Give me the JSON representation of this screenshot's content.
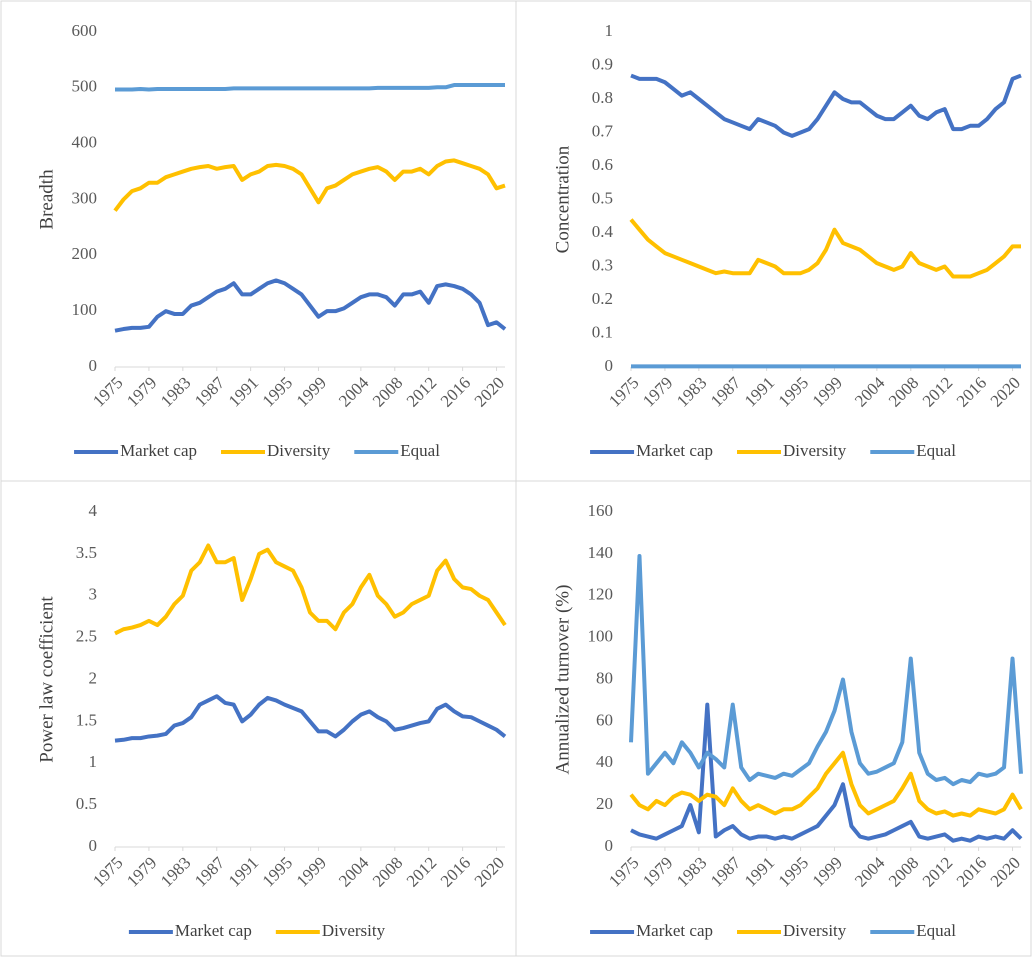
{
  "chart_data": [
    {
      "type": "line",
      "y_label": "Breadth",
      "legend": "bottom",
      "grid": false,
      "x": [
        1975,
        1976,
        1977,
        1978,
        1979,
        1980,
        1981,
        1982,
        1983,
        1984,
        1985,
        1986,
        1987,
        1988,
        1989,
        1990,
        1991,
        1992,
        1993,
        1994,
        1995,
        1996,
        1997,
        1998,
        1999,
        2000,
        2001,
        2002,
        2003,
        2004,
        2005,
        2006,
        2007,
        2008,
        2009,
        2010,
        2011,
        2012,
        2013,
        2014,
        2015,
        2016,
        2017,
        2018,
        2019,
        2020,
        2021
      ],
      "xlim": [
        1975,
        2021
      ],
      "xticks": [
        1975,
        1979,
        1983,
        1987,
        1991,
        1995,
        1999,
        2004,
        2008,
        2012,
        2016,
        2020
      ],
      "ylim": [
        0,
        600
      ],
      "yticks": [
        0,
        100,
        200,
        300,
        400,
        500,
        600
      ],
      "series": [
        {
          "name": "Market cap",
          "color": "#4472c4",
          "values": [
            65,
            68,
            70,
            70,
            72,
            90,
            100,
            95,
            95,
            110,
            115,
            125,
            135,
            140,
            150,
            130,
            130,
            140,
            150,
            155,
            150,
            140,
            130,
            110,
            90,
            100,
            100,
            105,
            115,
            125,
            130,
            130,
            125,
            110,
            130,
            130,
            135,
            115,
            145,
            148,
            145,
            140,
            130,
            115,
            75,
            80,
            68
          ]
        },
        {
          "name": "Diversity",
          "color": "#ffc000",
          "values": [
            280,
            300,
            315,
            320,
            330,
            330,
            340,
            345,
            350,
            355,
            358,
            360,
            355,
            358,
            360,
            335,
            345,
            350,
            360,
            362,
            360,
            355,
            345,
            320,
            295,
            320,
            325,
            335,
            345,
            350,
            355,
            358,
            350,
            335,
            350,
            350,
            355,
            345,
            360,
            368,
            370,
            365,
            360,
            355,
            345,
            320,
            325
          ]
        },
        {
          "name": "Equal",
          "color": "#5b9bd5",
          "values": [
            497,
            497,
            497,
            498,
            497,
            498,
            498,
            498,
            498,
            498,
            498,
            498,
            498,
            498,
            499,
            499,
            499,
            499,
            499,
            499,
            499,
            499,
            499,
            499,
            499,
            499,
            499,
            499,
            499,
            499,
            499,
            500,
            500,
            500,
            500,
            500,
            500,
            500,
            501,
            501,
            505,
            505,
            505,
            505,
            505,
            505,
            505
          ]
        }
      ]
    },
    {
      "type": "line",
      "y_label": "Concentration",
      "legend": "bottom",
      "grid": false,
      "x": [
        1975,
        1976,
        1977,
        1978,
        1979,
        1980,
        1981,
        1982,
        1983,
        1984,
        1985,
        1986,
        1987,
        1988,
        1989,
        1990,
        1991,
        1992,
        1993,
        1994,
        1995,
        1996,
        1997,
        1998,
        1999,
        2000,
        2001,
        2002,
        2003,
        2004,
        2005,
        2006,
        2007,
        2008,
        2009,
        2010,
        2011,
        2012,
        2013,
        2014,
        2015,
        2016,
        2017,
        2018,
        2019,
        2020,
        2021
      ],
      "xlim": [
        1975,
        2021
      ],
      "xticks": [
        1975,
        1979,
        1983,
        1987,
        1991,
        1995,
        1999,
        2004,
        2008,
        2012,
        2016,
        2020
      ],
      "ylim": [
        0,
        1
      ],
      "yticks": [
        0,
        0.1,
        0.2,
        0.3,
        0.4,
        0.5,
        0.6,
        0.7,
        0.8,
        0.9,
        1
      ],
      "series": [
        {
          "name": "Market cap",
          "color": "#4472c4",
          "values": [
            0.87,
            0.86,
            0.86,
            0.86,
            0.85,
            0.83,
            0.81,
            0.82,
            0.8,
            0.78,
            0.76,
            0.74,
            0.73,
            0.72,
            0.71,
            0.74,
            0.73,
            0.72,
            0.7,
            0.69,
            0.7,
            0.71,
            0.74,
            0.78,
            0.82,
            0.8,
            0.79,
            0.79,
            0.77,
            0.75,
            0.74,
            0.74,
            0.76,
            0.78,
            0.75,
            0.74,
            0.76,
            0.77,
            0.71,
            0.71,
            0.72,
            0.72,
            0.74,
            0.77,
            0.79,
            0.86,
            0.87
          ]
        },
        {
          "name": "Diversity",
          "color": "#ffc000",
          "values": [
            0.44,
            0.41,
            0.38,
            0.36,
            0.34,
            0.33,
            0.32,
            0.31,
            0.3,
            0.29,
            0.28,
            0.285,
            0.28,
            0.28,
            0.28,
            0.32,
            0.31,
            0.3,
            0.28,
            0.28,
            0.28,
            0.29,
            0.31,
            0.35,
            0.41,
            0.37,
            0.36,
            0.35,
            0.33,
            0.31,
            0.3,
            0.29,
            0.3,
            0.34,
            0.31,
            0.3,
            0.29,
            0.3,
            0.27,
            0.27,
            0.27,
            0.28,
            0.29,
            0.31,
            0.33,
            0.36,
            0.36
          ]
        },
        {
          "name": "Equal",
          "color": "#5b9bd5",
          "values": [
            0.002,
            0.002,
            0.002,
            0.002,
            0.002,
            0.002,
            0.002,
            0.002,
            0.002,
            0.002,
            0.002,
            0.002,
            0.002,
            0.002,
            0.002,
            0.002,
            0.002,
            0.002,
            0.002,
            0.002,
            0.002,
            0.002,
            0.002,
            0.002,
            0.002,
            0.002,
            0.002,
            0.002,
            0.002,
            0.002,
            0.002,
            0.002,
            0.002,
            0.002,
            0.002,
            0.002,
            0.002,
            0.002,
            0.002,
            0.002,
            0.002,
            0.002,
            0.002,
            0.002,
            0.002,
            0.002,
            0.002
          ]
        }
      ]
    },
    {
      "type": "line",
      "y_label": "Power law coefficient",
      "legend": "bottom",
      "grid": false,
      "x": [
        1975,
        1976,
        1977,
        1978,
        1979,
        1980,
        1981,
        1982,
        1983,
        1984,
        1985,
        1986,
        1987,
        1988,
        1989,
        1990,
        1991,
        1992,
        1993,
        1994,
        1995,
        1996,
        1997,
        1998,
        1999,
        2000,
        2001,
        2002,
        2003,
        2004,
        2005,
        2006,
        2007,
        2008,
        2009,
        2010,
        2011,
        2012,
        2013,
        2014,
        2015,
        2016,
        2017,
        2018,
        2019,
        2020,
        2021
      ],
      "xlim": [
        1975,
        2021
      ],
      "xticks": [
        1975,
        1979,
        1983,
        1987,
        1991,
        1995,
        1999,
        2004,
        2008,
        2012,
        2016,
        2020
      ],
      "ylim": [
        0,
        4
      ],
      "yticks": [
        0,
        0.5,
        1,
        1.5,
        2,
        2.5,
        3,
        3.5,
        4
      ],
      "series": [
        {
          "name": "Market cap",
          "color": "#4472c4",
          "values": [
            1.27,
            1.28,
            1.3,
            1.3,
            1.32,
            1.33,
            1.35,
            1.45,
            1.48,
            1.55,
            1.7,
            1.75,
            1.8,
            1.72,
            1.7,
            1.5,
            1.58,
            1.7,
            1.78,
            1.75,
            1.7,
            1.66,
            1.62,
            1.5,
            1.38,
            1.38,
            1.32,
            1.4,
            1.5,
            1.58,
            1.62,
            1.55,
            1.5,
            1.4,
            1.42,
            1.45,
            1.48,
            1.5,
            1.65,
            1.7,
            1.62,
            1.56,
            1.55,
            1.5,
            1.45,
            1.4,
            1.32
          ]
        },
        {
          "name": "Diversity",
          "color": "#ffc000",
          "values": [
            2.55,
            2.6,
            2.62,
            2.65,
            2.7,
            2.65,
            2.75,
            2.9,
            3.0,
            3.3,
            3.4,
            3.6,
            3.4,
            3.4,
            3.45,
            2.95,
            3.2,
            3.5,
            3.55,
            3.4,
            3.35,
            3.3,
            3.1,
            2.8,
            2.7,
            2.7,
            2.6,
            2.8,
            2.9,
            3.1,
            3.25,
            3.0,
            2.9,
            2.75,
            2.8,
            2.9,
            2.95,
            3.0,
            3.3,
            3.42,
            3.2,
            3.1,
            3.08,
            3.0,
            2.95,
            2.8,
            2.65
          ]
        }
      ]
    },
    {
      "type": "line",
      "y_label": "Annualized turnover (%)",
      "legend": "bottom",
      "grid": false,
      "x": [
        1975,
        1976,
        1977,
        1978,
        1979,
        1980,
        1981,
        1982,
        1983,
        1984,
        1985,
        1986,
        1987,
        1988,
        1989,
        1990,
        1991,
        1992,
        1993,
        1994,
        1995,
        1996,
        1997,
        1998,
        1999,
        2000,
        2001,
        2002,
        2003,
        2004,
        2005,
        2006,
        2007,
        2008,
        2009,
        2010,
        2011,
        2012,
        2013,
        2014,
        2015,
        2016,
        2017,
        2018,
        2019,
        2020,
        2021
      ],
      "xlim": [
        1975,
        2021
      ],
      "xticks": [
        1975,
        1979,
        1983,
        1987,
        1991,
        1995,
        1999,
        2004,
        2008,
        2012,
        2016,
        2020
      ],
      "ylim": [
        0,
        160
      ],
      "yticks": [
        0,
        20,
        40,
        60,
        80,
        100,
        120,
        140,
        160
      ],
      "series": [
        {
          "name": "Market cap",
          "color": "#4472c4",
          "values": [
            8,
            6,
            5,
            4,
            6,
            8,
            10,
            20,
            7,
            68,
            5,
            8,
            10,
            6,
            4,
            5,
            5,
            4,
            5,
            4,
            6,
            8,
            10,
            15,
            20,
            30,
            10,
            5,
            4,
            5,
            6,
            8,
            10,
            12,
            5,
            4,
            5,
            6,
            3,
            4,
            3,
            5,
            4,
            5,
            4,
            8,
            4
          ]
        },
        {
          "name": "Diversity",
          "color": "#ffc000",
          "values": [
            25,
            20,
            18,
            22,
            20,
            24,
            26,
            25,
            22,
            25,
            24,
            20,
            28,
            22,
            18,
            20,
            18,
            16,
            18,
            18,
            20,
            24,
            28,
            35,
            40,
            45,
            30,
            20,
            16,
            18,
            20,
            22,
            28,
            35,
            22,
            18,
            16,
            17,
            15,
            16,
            15,
            18,
            17,
            16,
            18,
            25,
            18
          ]
        },
        {
          "name": "Equal",
          "color": "#5b9bd5",
          "values": [
            50,
            139,
            35,
            40,
            45,
            40,
            50,
            45,
            38,
            45,
            42,
            38,
            68,
            38,
            32,
            35,
            34,
            33,
            35,
            34,
            37,
            40,
            48,
            55,
            65,
            80,
            55,
            40,
            35,
            36,
            38,
            40,
            50,
            90,
            45,
            35,
            32,
            33,
            30,
            32,
            31,
            35,
            34,
            35,
            38,
            90,
            35
          ]
        }
      ]
    }
  ]
}
